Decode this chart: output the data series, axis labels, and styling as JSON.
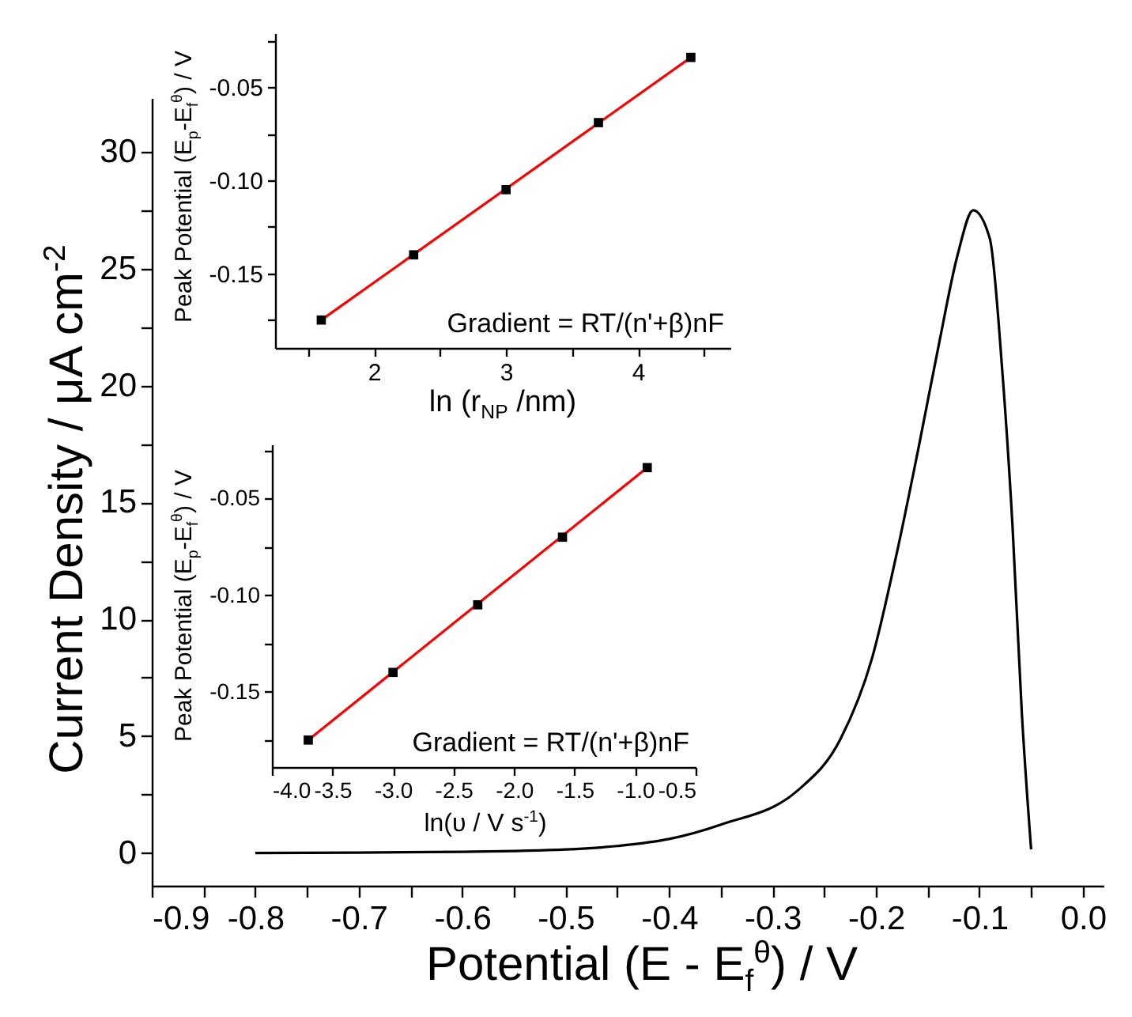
{
  "chart_data": [
    {
      "type": "line",
      "xlabel": "Potential (E - E$_{f}$$^{θ}$) / V",
      "ylabel": "Current Density / μA cm$^{-2}$",
      "xlim": [
        -0.9,
        0.02
      ],
      "ylim": [
        -1.4,
        32.3
      ],
      "xticks": [
        {
          "value": -0.9,
          "label": "-0.9"
        },
        {
          "value": -0.85,
          "label": null
        },
        {
          "value": -0.8,
          "label": "-0.8"
        },
        {
          "value": -0.75,
          "label": null
        },
        {
          "value": -0.7,
          "label": "-0.7"
        },
        {
          "value": -0.65,
          "label": null
        },
        {
          "value": -0.6,
          "label": "-0.6"
        },
        {
          "value": -0.55,
          "label": null
        },
        {
          "value": -0.5,
          "label": "-0.5"
        },
        {
          "value": -0.45,
          "label": null
        },
        {
          "value": -0.4,
          "label": "-0.4"
        },
        {
          "value": -0.35,
          "label": null
        },
        {
          "value": -0.3,
          "label": "-0.3"
        },
        {
          "value": -0.25,
          "label": null
        },
        {
          "value": -0.2,
          "label": "-0.2"
        },
        {
          "value": -0.15,
          "label": null
        },
        {
          "value": -0.1,
          "label": "-0.1"
        },
        {
          "value": -0.05,
          "label": null
        },
        {
          "value": 0,
          "label": "0.0"
        }
      ],
      "yticks": [
        0,
        {
          "value": 2.5,
          "label": null
        },
        5,
        {
          "value": 7.5,
          "label": null
        },
        10,
        {
          "value": 12.5,
          "label": null
        },
        15,
        {
          "value": 17.5,
          "label": null
        },
        20,
        {
          "value": 22.5,
          "label": null
        },
        25,
        {
          "value": 27.5,
          "label": null
        },
        30
      ],
      "series": [
        {
          "color": "#000000",
          "x": [
            -0.8,
            -0.7,
            -0.6,
            -0.5,
            -0.45,
            -0.4,
            -0.351,
            -0.275,
            -0.234,
            -0.204,
            -0.18,
            -0.159,
            -0.139,
            -0.121,
            -0.106,
            -0.09,
            -0.078,
            -0.068,
            -0.059,
            -0.05
          ],
          "values": [
            0,
            0.02,
            0.05,
            0.15,
            0.3,
            0.6,
            1.2,
            2.7,
            4.9,
            8.3,
            12.8,
            17.3,
            21.8,
            25.6,
            27.5,
            26.3,
            20.7,
            14,
            6,
            0.15
          ]
        }
      ]
    },
    {
      "type": "scatter",
      "xlabel": "ln (r$_{NP}$ /nm)",
      "ylabel": "Peak Potential (E$_{p}$-E$_{f}$$^{θ}$) / V",
      "annotations": [
        "Gradient = RT/(n'+β)nF"
      ],
      "xlim": [
        1.25,
        4.7
      ],
      "ylim": [
        -0.19,
        -0.021
      ],
      "xticks": [
        {
          "value": 1.5,
          "label": null
        },
        2,
        {
          "value": 2.5,
          "label": null
        },
        3,
        {
          "value": 3.5,
          "label": null
        },
        4,
        {
          "value": 4.5,
          "label": null
        }
      ],
      "yticks": [
        {
          "value": -0.175,
          "label": null
        },
        {
          "value": -0.15,
          "label": "-0.15"
        },
        {
          "value": -0.125,
          "label": null
        },
        {
          "value": -0.1,
          "label": "-0.10"
        },
        {
          "value": -0.075,
          "label": null
        },
        {
          "value": -0.05,
          "label": "-0.05"
        },
        {
          "value": -0.025,
          "label": null
        }
      ],
      "series": [
        {
          "type": "line",
          "color": "#ff0000",
          "x": [
            1.6,
            4.4
          ],
          "values": [
            -0.175,
            -0.034
          ]
        },
        {
          "type": "scatter",
          "marker": "square",
          "color": "#000000",
          "x": [
            1.6,
            2.3,
            3.0,
            3.7,
            4.4
          ],
          "values": [
            -0.175,
            -0.14,
            -0.105,
            -0.069,
            -0.034
          ]
        }
      ]
    },
    {
      "type": "scatter",
      "xlabel": "ln(υ / V s$^{-1}$)",
      "ylabel": "Peak Potential (E$_{p}$-E$_{f}$$^{θ}$) / V",
      "annotations": [
        "Gradient = RT/(n'+β)nF"
      ],
      "xlim": [
        -4.0,
        -0.5
      ],
      "ylim": [
        -0.189,
        -0.022
      ],
      "xticks": [
        {
          "value": -4,
          "label": "-4.0"
        },
        {
          "value": -3.5,
          "label": "-3.5"
        },
        {
          "value": -3,
          "label": "-3.0"
        },
        {
          "value": -2.5,
          "label": "-2.5"
        },
        {
          "value": -2,
          "label": "-2.0"
        },
        {
          "value": -1.5,
          "label": "-1.5"
        },
        {
          "value": -1,
          "label": "-1.0"
        },
        {
          "value": -0.5,
          "label": "-0.5"
        }
      ],
      "yticks": [
        {
          "value": -0.175,
          "label": null
        },
        {
          "value": -0.15,
          "label": "-0.15"
        },
        {
          "value": -0.125,
          "label": null
        },
        {
          "value": -0.1,
          "label": "-0.10"
        },
        {
          "value": -0.075,
          "label": null
        },
        {
          "value": -0.05,
          "label": "-0.05"
        },
        {
          "value": -0.025,
          "label": null
        }
      ],
      "series": [
        {
          "type": "line",
          "color": "#ff0000",
          "x": [
            -3.7,
            -0.9
          ],
          "values": [
            -0.175,
            -0.034
          ]
        },
        {
          "type": "scatter",
          "marker": "square",
          "color": "#000000",
          "x": [
            -3.7,
            -3.0,
            -2.3,
            -1.6,
            -0.9
          ],
          "values": [
            -0.175,
            -0.14,
            -0.105,
            -0.07,
            -0.034
          ]
        }
      ]
    }
  ]
}
